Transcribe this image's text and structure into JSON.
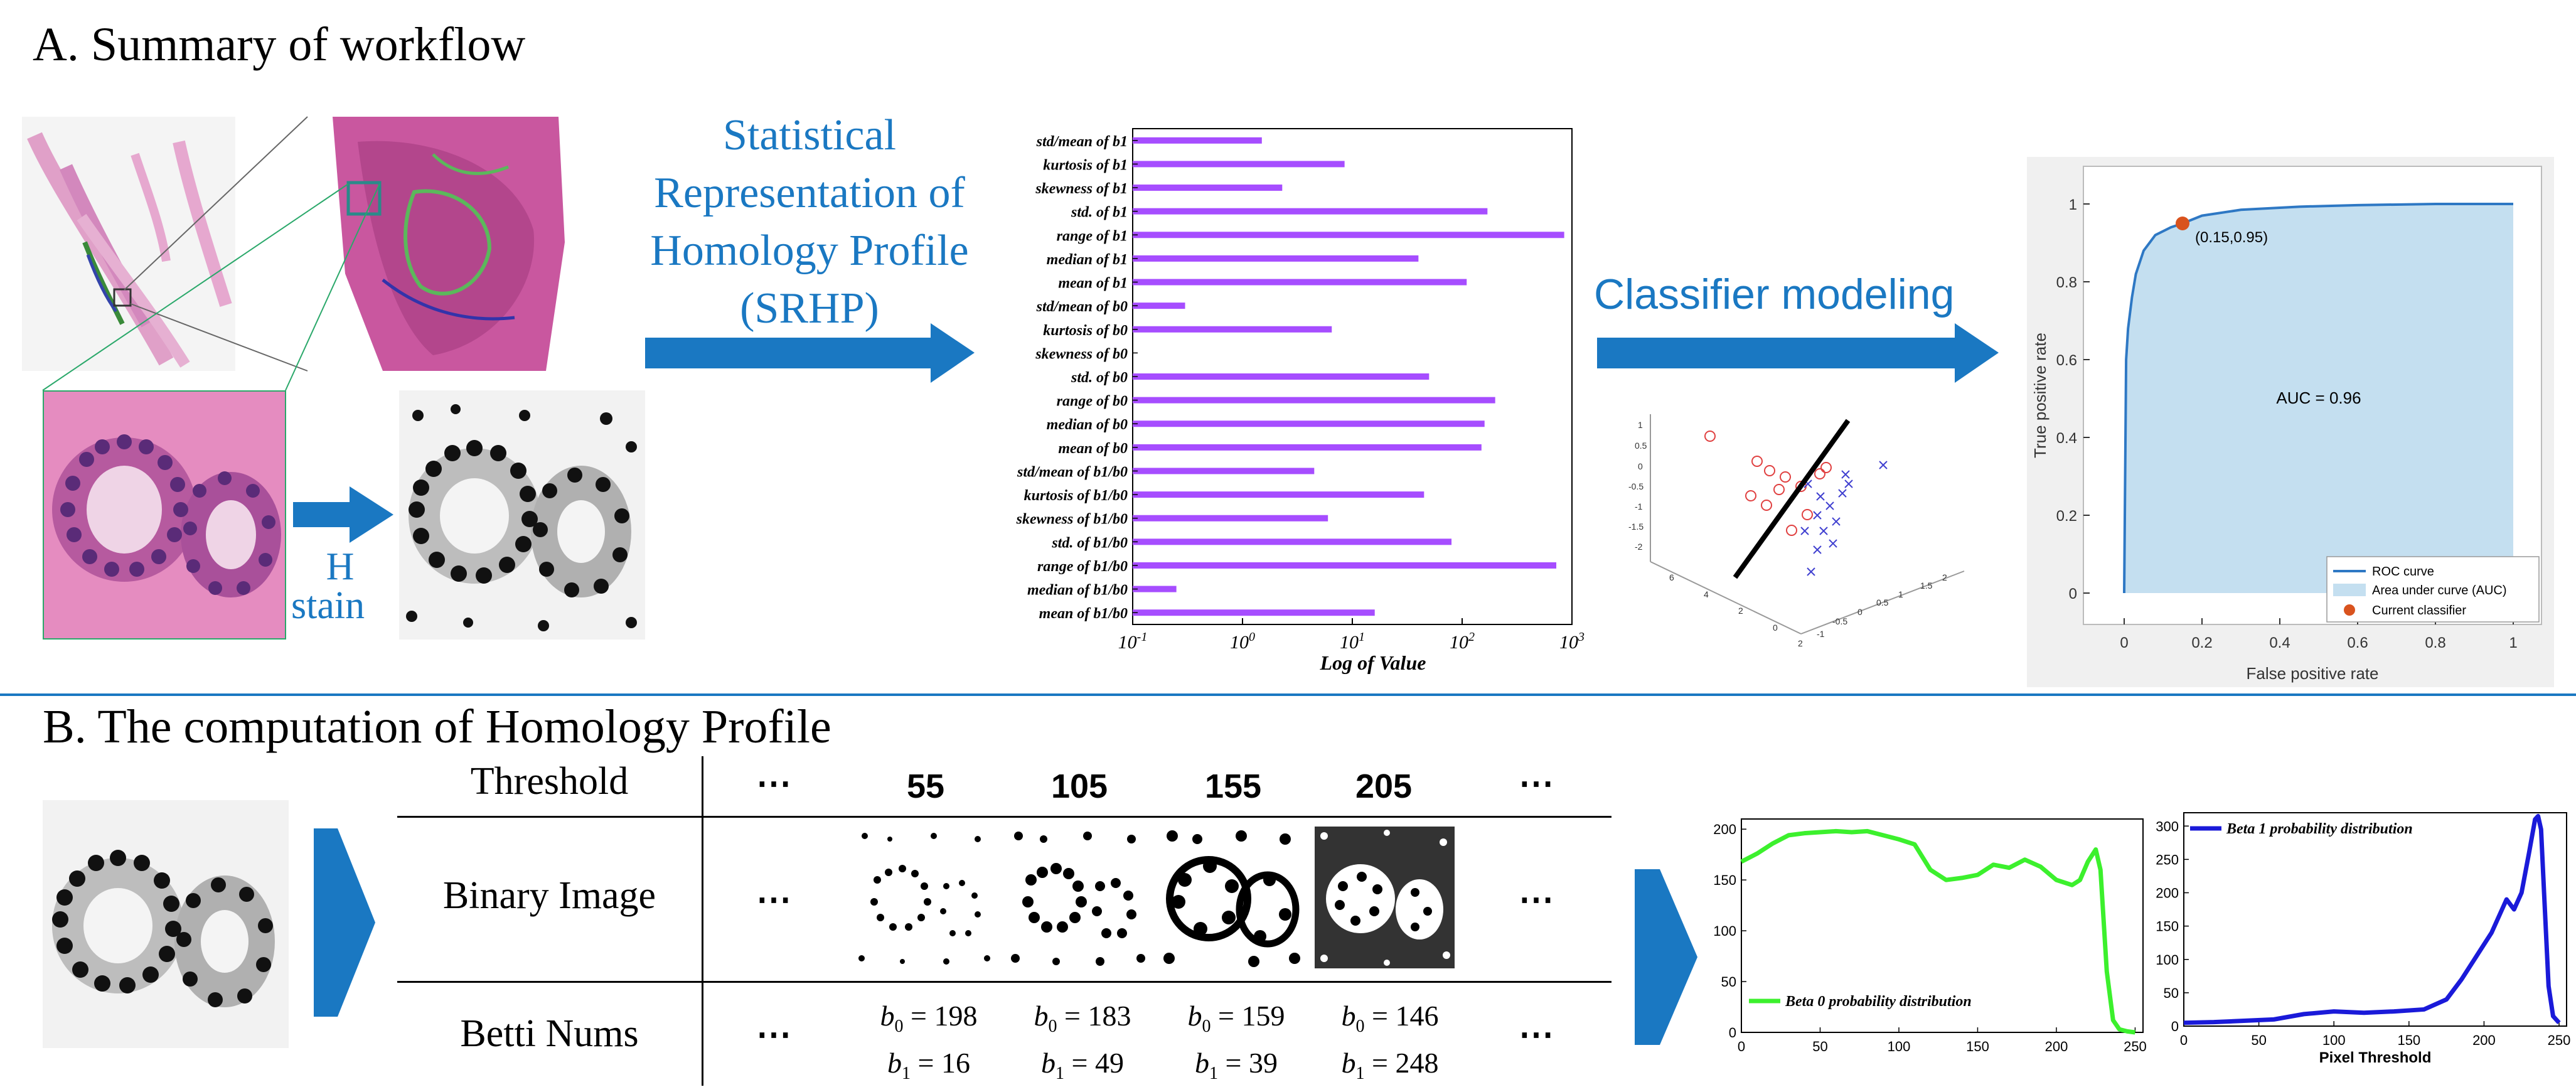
{
  "section_a": {
    "title": "A. Summary of workflow",
    "h_stain_line1": "H",
    "h_stain_line2": "stain",
    "srhp_lines": [
      "Statistical",
      "Representation of",
      "Homology Profile",
      "(SRHP)"
    ],
    "classifier_label": "Classifier modeling"
  },
  "section_b": {
    "title": "B. The computation of Homology Profile",
    "row_headers": [
      "Threshold",
      "Binary Image",
      "Betti Nums"
    ],
    "ellipsis": "⋯",
    "thresholds": [
      "55",
      "105",
      "155",
      "205"
    ],
    "betti": [
      {
        "b0": "198",
        "b1": "16"
      },
      {
        "b0": "183",
        "b1": "49"
      },
      {
        "b0": "159",
        "b1": "39"
      },
      {
        "b0": "146",
        "b1": "248"
      }
    ]
  },
  "colors": {
    "accent_blue": "#1a78c2",
    "bar_purple": "#a64dff",
    "roc_fill": "#c4dff0",
    "roc_line": "#2e78c4",
    "point_red": "#d9531e",
    "beta0_green": "#3cf02d",
    "beta1_blue": "#1a1ad9"
  },
  "chart_data": [
    {
      "type": "bar",
      "orientation": "horizontal",
      "xscale": "log",
      "xlabel": "Log of Value",
      "xlim": [
        0.1,
        1000
      ],
      "xtick_labels": [
        "10^-1",
        "10^0",
        "10^1",
        "10^2",
        "10^3"
      ],
      "categories": [
        "std/mean of b1",
        "kurtosis of b1",
        "skewness of b1",
        "std. of b1",
        "range of b1",
        "median of b1",
        "mean of b1",
        "std/mean of b0",
        "kurtosis of b0",
        "skewness of b0",
        "std. of b0",
        "range of b0",
        "median of b0",
        "mean of b0",
        "std/mean of b1/b0",
        "kurtosis of b1/b0",
        "skewness of b1/b0",
        "std. of b1/b0",
        "range of b1/b0",
        "median of b1/b0",
        "mean of b1/b0"
      ],
      "values": [
        1.5,
        8.5,
        2.3,
        170,
        850,
        40,
        110,
        0.3,
        6.5,
        0.1,
        50,
        200,
        160,
        150,
        4.5,
        45,
        6,
        80,
        720,
        0.25,
        16
      ]
    },
    {
      "type": "line",
      "title": "",
      "xlabel": "False positive rate",
      "ylabel": "True positive rate",
      "xlim": [
        0,
        1
      ],
      "ylim": [
        0,
        1
      ],
      "xticks": [
        0,
        0.2,
        0.4,
        0.6,
        0.8,
        1
      ],
      "yticks": [
        0,
        0.2,
        0.4,
        0.6,
        0.8,
        1
      ],
      "x": [
        0,
        0.005,
        0.01,
        0.02,
        0.03,
        0.05,
        0.08,
        0.12,
        0.15,
        0.2,
        0.3,
        0.45,
        0.6,
        0.8,
        1.0
      ],
      "y": [
        0,
        0.6,
        0.68,
        0.76,
        0.82,
        0.88,
        0.92,
        0.94,
        0.95,
        0.97,
        0.985,
        0.993,
        0.997,
        1.0,
        1.0
      ],
      "annotation": "AUC = 0.96",
      "point": {
        "x": 0.15,
        "y": 0.95,
        "label": "(0.15,0.95)"
      },
      "legend": [
        "ROC curve",
        "Area under curve (AUC)",
        "Current classifier"
      ],
      "legend_position": "bottom-right"
    },
    {
      "type": "line",
      "legend": [
        "Beta 0 probability distribution"
      ],
      "xlim": [
        0,
        255
      ],
      "ylim": [
        0,
        210
      ],
      "xticks": [
        0,
        50,
        100,
        150,
        200,
        250
      ],
      "yticks": [
        0,
        50,
        100,
        150,
        200
      ],
      "x": [
        0,
        10,
        20,
        30,
        40,
        50,
        60,
        70,
        80,
        90,
        100,
        110,
        120,
        130,
        140,
        150,
        160,
        170,
        180,
        190,
        200,
        210,
        215,
        220,
        225,
        228,
        232,
        236,
        240,
        245,
        250
      ],
      "y": [
        168,
        176,
        186,
        194,
        196,
        197,
        198,
        197,
        198,
        194,
        190,
        185,
        160,
        150,
        152,
        155,
        165,
        162,
        170,
        163,
        150,
        145,
        150,
        168,
        180,
        160,
        60,
        12,
        3,
        1,
        0
      ]
    },
    {
      "type": "line",
      "legend": [
        "Beta 1 probability distribution"
      ],
      "xlabel": "Pixel Threshold",
      "xlim": [
        0,
        255
      ],
      "ylim": [
        0,
        320
      ],
      "xticks": [
        0,
        50,
        100,
        150,
        200,
        250
      ],
      "yticks": [
        0,
        50,
        100,
        150,
        200,
        250,
        300
      ],
      "x": [
        0,
        20,
        40,
        60,
        80,
        100,
        120,
        140,
        160,
        175,
        185,
        195,
        205,
        215,
        220,
        225,
        230,
        234,
        236,
        238,
        240,
        243,
        246,
        250
      ],
      "y": [
        5,
        6,
        8,
        10,
        18,
        22,
        20,
        22,
        25,
        40,
        70,
        105,
        140,
        190,
        175,
        200,
        260,
        310,
        315,
        295,
        200,
        60,
        15,
        5
      ]
    }
  ]
}
